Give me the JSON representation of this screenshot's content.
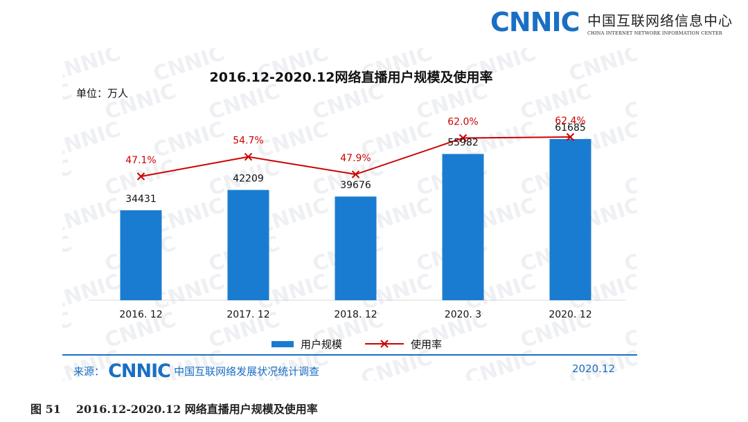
{
  "header": {
    "logo_text": "CNNIC",
    "org_name_cn": "中国互联网络信息中心",
    "org_name_en": "CHINA INTERNET NETWORK INFORMATION CENTER"
  },
  "watermark_text": "CNNIC",
  "chart_data": {
    "type": "bar",
    "title": "2016.12-2020.12网络直播用户规模及使用率",
    "unit_label": "单位：万人",
    "categories": [
      "2016. 12",
      "2017. 12",
      "2018. 12",
      "2020. 3",
      "2020. 12"
    ],
    "series": [
      {
        "name": "用户规模",
        "type": "bar",
        "color": "#1a7cd0",
        "values": [
          34431,
          42209,
          39676,
          55982,
          61685
        ],
        "labels": [
          "34431",
          "42209",
          "39676",
          "55982",
          "61685"
        ]
      },
      {
        "name": "使用率",
        "type": "line",
        "color": "#cc0000",
        "values": [
          47.1,
          54.7,
          47.9,
          62.0,
          62.4
        ],
        "labels": [
          "47.1%",
          "54.7%",
          "47.9%",
          "62.0%",
          "62.4%"
        ]
      }
    ],
    "legend": "bottom"
  },
  "footer": {
    "source_label": "来源：",
    "source_logo": "CNNIC",
    "source_name": "中国互联网络发展状况统计调查",
    "date": "2020.12"
  },
  "caption": {
    "number": "图 51",
    "text": "2016.12-2020.12 网络直播用户规模及使用率"
  }
}
